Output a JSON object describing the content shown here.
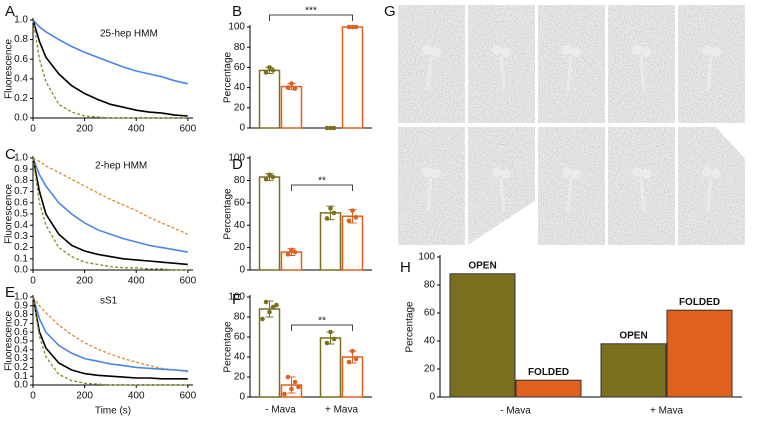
{
  "chart_data": [
    {
      "type": "line",
      "panel": "A",
      "title": "25-hep HMM",
      "ylabel": "Fluorescence",
      "x": [
        0,
        25,
        50,
        100,
        150,
        200,
        250,
        300,
        350,
        400,
        450,
        500,
        550,
        600
      ],
      "series": [
        {
          "color": "#4a86e8",
          "style": "solid",
          "values": [
            1.0,
            0.93,
            0.88,
            0.8,
            0.73,
            0.67,
            0.62,
            0.57,
            0.52,
            0.48,
            0.45,
            0.42,
            0.38,
            0.35
          ]
        },
        {
          "color": "#000000",
          "style": "solid",
          "values": [
            1.0,
            0.78,
            0.62,
            0.45,
            0.33,
            0.25,
            0.19,
            0.14,
            0.11,
            0.08,
            0.06,
            0.05,
            0.03,
            0.02
          ]
        },
        {
          "color": "#8a8a20",
          "style": "dashed",
          "values": [
            1.0,
            0.6,
            0.37,
            0.14,
            0.06,
            0.02,
            0.01,
            0,
            0,
            0,
            0,
            0,
            0,
            0
          ]
        }
      ],
      "xlim": [
        0,
        620
      ],
      "xticks": [
        0,
        200,
        400,
        600
      ],
      "ylim": [
        0,
        1
      ],
      "yticks": [
        {
          "value": 0,
          "label": "0.0"
        },
        0.2,
        0.4,
        0.6,
        0.8,
        {
          "value": 1,
          "label": "1.0"
        }
      ]
    },
    {
      "type": "bar",
      "panel": "B",
      "ylabel": "Percentage",
      "significance": "***",
      "categories": [
        null,
        null
      ],
      "series": [
        {
          "color": "#7a6f1e",
          "values": [
            57,
            0
          ],
          "errors": [
            3,
            0
          ],
          "points": [
            [
              55,
              60,
              57
            ],
            [
              0,
              0,
              0
            ]
          ]
        },
        {
          "color": "#e0601e",
          "values": [
            41,
            100
          ],
          "errors": [
            3,
            0
          ],
          "points": [
            [
              40,
              44,
              39
            ],
            [
              100,
              100,
              100
            ]
          ]
        }
      ],
      "ylim": [
        0,
        100
      ],
      "yticks": [
        0,
        20,
        40,
        60,
        80,
        100
      ]
    },
    {
      "type": "line",
      "panel": "C",
      "title": "2-hep HMM",
      "ylabel": "Fluorescence",
      "x": [
        0,
        25,
        50,
        100,
        150,
        200,
        250,
        300,
        350,
        400,
        450,
        500,
        550,
        600
      ],
      "series": [
        {
          "color": "#e08a2a",
          "style": "dashed",
          "values": [
            1.0,
            0.97,
            0.93,
            0.87,
            0.81,
            0.75,
            0.69,
            0.63,
            0.58,
            0.53,
            0.47,
            0.42,
            0.37,
            0.32
          ]
        },
        {
          "color": "#4a86e8",
          "style": "solid",
          "values": [
            1.0,
            0.85,
            0.75,
            0.6,
            0.5,
            0.42,
            0.36,
            0.32,
            0.28,
            0.25,
            0.22,
            0.2,
            0.18,
            0.16
          ]
        },
        {
          "color": "#000000",
          "style": "solid",
          "values": [
            1.0,
            0.7,
            0.5,
            0.32,
            0.22,
            0.17,
            0.14,
            0.12,
            0.1,
            0.09,
            0.08,
            0.07,
            0.06,
            0.05
          ]
        },
        {
          "color": "#8a8a20",
          "style": "dashed",
          "values": [
            1.0,
            0.6,
            0.4,
            0.2,
            0.12,
            0.07,
            0.05,
            0.03,
            0.02,
            0.02,
            0.01,
            0.01,
            0,
            0
          ]
        }
      ],
      "xlim": [
        0,
        620
      ],
      "xticks": [
        0,
        200,
        400,
        600
      ],
      "ylim": [
        0,
        1
      ],
      "yticks": [
        {
          "value": 0,
          "label": "0.0"
        },
        0.1,
        0.2,
        0.3,
        0.4,
        0.5,
        0.6,
        0.7,
        0.8,
        0.9,
        {
          "value": 1,
          "label": "1.0"
        }
      ]
    },
    {
      "type": "bar",
      "panel": "D",
      "ylabel": "Percentage",
      "significance": "**",
      "categories": [
        null,
        null
      ],
      "series": [
        {
          "color": "#7a6f1e",
          "values": [
            83,
            51
          ],
          "errors": [
            3,
            6
          ],
          "points": [
            [
              81,
              85,
              83
            ],
            [
              46,
              55,
              51
            ]
          ]
        },
        {
          "color": "#e0601e",
          "values": [
            16,
            48
          ],
          "errors": [
            3,
            6
          ],
          "points": [
            [
              14,
              18,
              16
            ],
            [
              44,
              53,
              47
            ]
          ]
        }
      ],
      "ylim": [
        0,
        100
      ],
      "yticks": [
        0,
        20,
        40,
        60,
        80,
        100
      ]
    },
    {
      "type": "line",
      "panel": "E",
      "title": "sS1",
      "ylabel": "Fluorescence",
      "xlabel": "Time (s)",
      "x": [
        0,
        25,
        50,
        100,
        150,
        200,
        250,
        300,
        350,
        400,
        450,
        500,
        550,
        600
      ],
      "series": [
        {
          "color": "#e08a2a",
          "style": "dashed",
          "values": [
            1.0,
            0.9,
            0.82,
            0.68,
            0.57,
            0.48,
            0.41,
            0.35,
            0.3,
            0.26,
            0.22,
            0.19,
            0.17,
            0.15
          ]
        },
        {
          "color": "#4a86e8",
          "style": "solid",
          "values": [
            1.0,
            0.75,
            0.6,
            0.45,
            0.36,
            0.3,
            0.27,
            0.24,
            0.22,
            0.2,
            0.19,
            0.18,
            0.17,
            0.16
          ]
        },
        {
          "color": "#000000",
          "style": "solid",
          "values": [
            1.0,
            0.6,
            0.42,
            0.25,
            0.17,
            0.13,
            0.11,
            0.1,
            0.09,
            0.08,
            0.08,
            0.07,
            0.07,
            0.07
          ]
        },
        {
          "color": "#8a8a20",
          "style": "dashed",
          "values": [
            1.0,
            0.55,
            0.32,
            0.12,
            0.05,
            0.02,
            0.01,
            0,
            0,
            0,
            0,
            0,
            0,
            0
          ]
        }
      ],
      "xlim": [
        0,
        620
      ],
      "xticks": [
        0,
        200,
        400,
        600
      ],
      "ylim": [
        0,
        1
      ],
      "yticks": [
        {
          "value": 0,
          "label": "0.0"
        },
        0.1,
        0.2,
        0.3,
        0.4,
        0.5,
        0.6,
        0.7,
        0.8,
        0.9,
        {
          "value": 1,
          "label": "1.0"
        }
      ]
    },
    {
      "type": "bar",
      "panel": "F",
      "ylabel": "Percentage",
      "significance": "**",
      "categories": [
        "- Mava",
        "+ Mava"
      ],
      "series": [
        {
          "color": "#7a6f1e",
          "values": [
            88,
            59
          ],
          "errors": [
            8,
            6
          ],
          "points": [
            [
              78,
              95,
              85,
              90,
              92
            ],
            [
              54,
              65,
              58
            ]
          ]
        },
        {
          "color": "#e0601e",
          "values": [
            12,
            40
          ],
          "errors": [
            8,
            6
          ],
          "points": [
            [
              3,
              20,
              8,
              15,
              10
            ],
            [
              35,
              46,
              38
            ]
          ]
        }
      ],
      "ylim": [
        0,
        100
      ],
      "yticks": [
        0,
        20,
        40,
        60,
        80,
        100
      ]
    },
    {
      "type": "filledbar",
      "panel": "H",
      "ylabel": "Percentage",
      "categories": [
        "- Mava",
        "+ Mava"
      ],
      "series": [
        {
          "name": "OPEN",
          "color": "#7a6f1e",
          "values": [
            88,
            38
          ]
        },
        {
          "name": "FOLDED",
          "color": "#e0601e",
          "values": [
            12,
            62
          ]
        }
      ],
      "ylim": [
        0,
        100
      ],
      "yticks": [
        0,
        20,
        40,
        60,
        80,
        100
      ]
    }
  ],
  "micrographs": {
    "panel": "G"
  }
}
